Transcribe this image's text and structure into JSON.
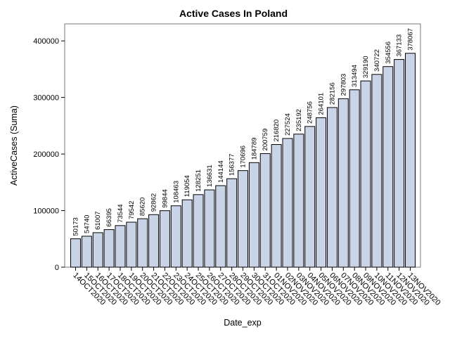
{
  "chart_data": {
    "type": "bar",
    "title": "Active Cases In Poland",
    "xlabel": "Date_exp",
    "ylabel": "ActiveCases (Suma)",
    "ylim": [
      0,
      430000
    ],
    "yticks": [
      0,
      100000,
      200000,
      300000,
      400000
    ],
    "categories": [
      "14OCT2020",
      "15OCT2020",
      "16OCT2020",
      "17OCT2020",
      "18OCT2020",
      "19OCT2020",
      "20OCT2020",
      "21OCT2020",
      "22OCT2020",
      "23OCT2020",
      "24OCT2020",
      "25OCT2020",
      "26OCT2020",
      "27OCT2020",
      "28OCT2020",
      "29OCT2020",
      "30OCT2020",
      "31OCT2020",
      "01NOV2020",
      "02NOV2020",
      "03NOV2020",
      "04NOV2020",
      "05NOV2020",
      "06NOV2020",
      "07NOV2020",
      "08NOV2020",
      "09NOV2020",
      "10NOV2020",
      "11NOV2020",
      "12NOV2020",
      "13NOV2020"
    ],
    "values": [
      50173,
      54740,
      61007,
      66395,
      73544,
      79542,
      85620,
      92862,
      99844,
      108463,
      119054,
      128251,
      136631,
      144144,
      156377,
      170696,
      184789,
      200759,
      216820,
      227524,
      235192,
      248756,
      264101,
      282156,
      297803,
      313494,
      329190,
      340722,
      354556,
      367133,
      378067
    ],
    "grid": false,
    "legend": "none",
    "bar_color": "#c9d5e6",
    "bar_outline": "#000000"
  }
}
